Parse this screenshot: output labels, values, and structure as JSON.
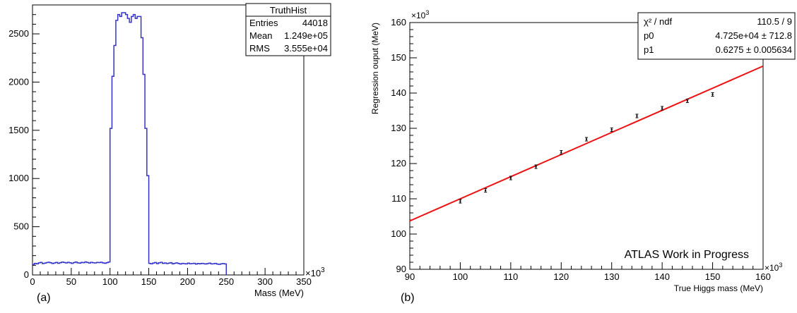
{
  "chart_data": [
    {
      "type": "bar",
      "panel_label": "(a)",
      "xlabel": "Mass (MeV)",
      "ylabel": "",
      "xlim": [
        0,
        350
      ],
      "ylim": [
        0,
        2800
      ],
      "x_exponent_label": "×10",
      "x_exponent_power": "3",
      "xticks": [
        0,
        50,
        100,
        150,
        200,
        250,
        300,
        350
      ],
      "yticks": [
        0,
        500,
        1000,
        1500,
        2000,
        2500
      ],
      "series": [
        {
          "color": "#3333cc",
          "bin_width": 2.5,
          "bin_start": 0,
          "values": [
            110,
            120,
            115,
            125,
            130,
            118,
            122,
            128,
            132,
            126,
            119,
            124,
            130,
            121,
            127,
            133,
            129,
            124,
            131,
            126,
            120,
            128,
            134,
            125,
            122,
            130,
            127,
            135,
            129,
            123,
            131,
            126,
            124,
            130,
            128,
            132,
            125,
            121,
            127,
            133,
            1520,
            2060,
            2380,
            2640,
            2700,
            2680,
            2720,
            2720,
            2700,
            2660,
            2620,
            2680,
            2700,
            2660,
            2680,
            2680,
            2460,
            2080,
            1520,
            1030,
            120,
            115,
            123,
            129,
            117,
            126,
            131,
            120,
            124,
            118,
            122,
            127,
            115,
            121,
            125,
            119,
            113,
            120,
            117,
            114,
            122,
            116,
            118,
            121,
            112,
            119,
            115,
            120,
            117,
            113,
            118,
            122,
            114,
            116,
            120,
            112,
            110,
            115,
            118,
            114
          ]
        }
      ],
      "stats_box": {
        "title": "TruthHist",
        "rows": [
          {
            "label": "Entries",
            "value": "44018"
          },
          {
            "label": "Mean",
            "value": "1.249e+05"
          },
          {
            "label": "RMS",
            "value": "3.555e+04"
          }
        ]
      }
    },
    {
      "type": "scatter",
      "panel_label": "(b)",
      "xlabel": "True Higgs mass (MeV)",
      "ylabel": "Regression ouput (MeV)",
      "xlim": [
        90,
        160
      ],
      "ylim": [
        90,
        160
      ],
      "x_exponent_label": "×10",
      "x_exponent_power": "3",
      "y_exponent_label": "×10",
      "y_exponent_power": "3",
      "xticks": [
        90,
        100,
        110,
        120,
        130,
        140,
        150,
        160
      ],
      "yticks": [
        90,
        100,
        110,
        120,
        130,
        140,
        150,
        160
      ],
      "points": [
        {
          "x": 100,
          "y": 109.3,
          "err": 0.4
        },
        {
          "x": 105,
          "y": 112.4,
          "err": 0.4
        },
        {
          "x": 110,
          "y": 115.9,
          "err": 0.4
        },
        {
          "x": 115,
          "y": 119.1,
          "err": 0.4
        },
        {
          "x": 120,
          "y": 123.2,
          "err": 0.4
        },
        {
          "x": 125,
          "y": 126.9,
          "err": 0.4
        },
        {
          "x": 130,
          "y": 129.6,
          "err": 0.4
        },
        {
          "x": 135,
          "y": 133.5,
          "err": 0.4
        },
        {
          "x": 140,
          "y": 135.7,
          "err": 0.4
        },
        {
          "x": 145,
          "y": 137.8,
          "err": 0.4
        },
        {
          "x": 150,
          "y": 139.6,
          "err": 0.4
        }
      ],
      "fit": {
        "p0": 47.25,
        "p1": 0.6275,
        "color": "#ee1111"
      },
      "fit_box": {
        "rows": [
          {
            "label": "χ² / ndf",
            "value": "110.5 / 9"
          },
          {
            "label": "p0",
            "value": "4.725e+04 ± 712.8"
          },
          {
            "label": "p1",
            "value": "0.6275 ± 0.005634"
          }
        ]
      },
      "annotation": "ATLAS Work in Progress"
    }
  ]
}
